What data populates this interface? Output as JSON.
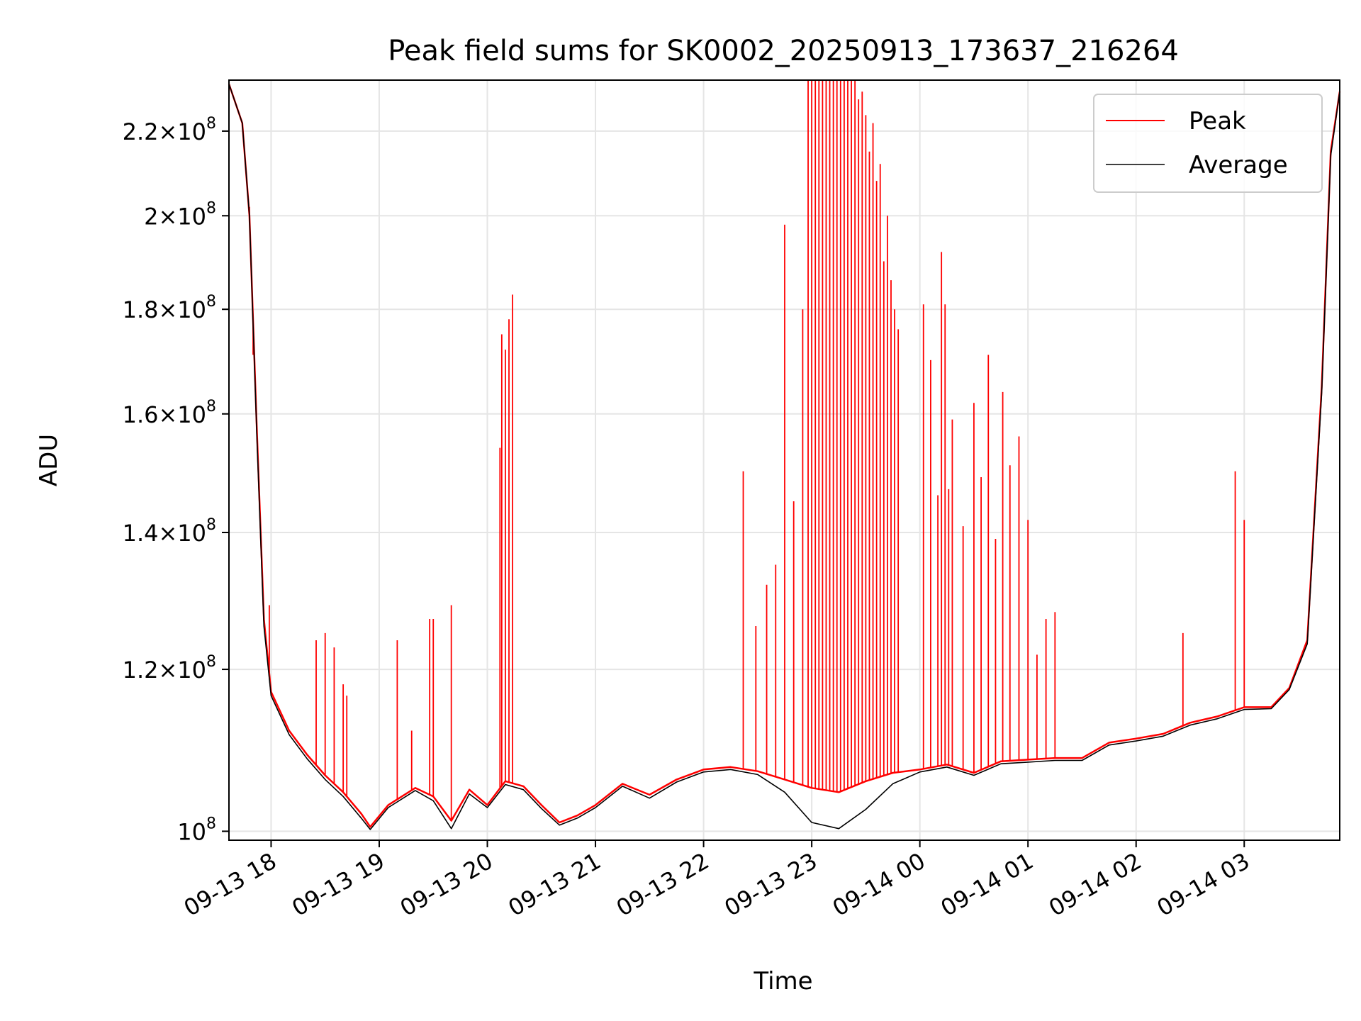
{
  "chart_data": {
    "type": "line",
    "title": "Peak field sums for SK0002_20250913_173637_216264",
    "xlabel": "Time",
    "ylabel": "ADU",
    "yscale": "log",
    "ylim": [
      99000000,
      233000000
    ],
    "xlim": [
      "2025-09-13 17:36:37",
      "2025-09-14 03:53:00"
    ],
    "x_ticks": [
      "09-13 18",
      "09-13 19",
      "09-13 20",
      "09-13 21",
      "09-13 22",
      "09-13 23",
      "09-14 00",
      "09-14 01",
      "09-14 02",
      "09-14 03"
    ],
    "y_ticks": [
      {
        "value": 100000000,
        "mantissa": "",
        "exponent": "8"
      },
      {
        "value": 120000000,
        "mantissa": "1.2",
        "exponent": "8"
      },
      {
        "value": 140000000,
        "mantissa": "1.4",
        "exponent": "8"
      },
      {
        "value": 160000000,
        "mantissa": "1.6",
        "exponent": "8"
      },
      {
        "value": 180000000,
        "mantissa": "1.8",
        "exponent": "8"
      },
      {
        "value": 200000000,
        "mantissa": "2",
        "exponent": "8"
      },
      {
        "value": 220000000,
        "mantissa": "2.2",
        "exponent": "8"
      }
    ],
    "grid": true,
    "legend_position": "top-right",
    "series": [
      {
        "name": "Peak",
        "color": "#ff0000",
        "points": [
          [
            "2025-09-13 17:36:37",
            232000000
          ],
          [
            "2025-09-13 17:44:00",
            222000000
          ],
          [
            "2025-09-13 17:48:00",
            200000000
          ],
          [
            "2025-09-13 17:52:00",
            158000000
          ],
          [
            "2025-09-13 17:56:00",
            127000000
          ],
          [
            "2025-09-13 18:00:00",
            117000000
          ],
          [
            "2025-09-13 18:10:00",
            112000000
          ],
          [
            "2025-09-13 18:20:00",
            109000000
          ],
          [
            "2025-09-13 18:30:00",
            106500000
          ],
          [
            "2025-09-13 18:40:00",
            104500000
          ],
          [
            "2025-09-13 18:50:00",
            102000000
          ],
          [
            "2025-09-13 18:55:00",
            100500000
          ],
          [
            "2025-09-13 19:05:00",
            103000000
          ],
          [
            "2025-09-13 19:20:00",
            105000000
          ],
          [
            "2025-09-13 19:30:00",
            104000000
          ],
          [
            "2025-09-13 19:40:00",
            101200000
          ],
          [
            "2025-09-13 19:50:00",
            104800000
          ],
          [
            "2025-09-13 20:00:00",
            103000000
          ],
          [
            "2025-09-13 20:10:00",
            105800000
          ],
          [
            "2025-09-13 20:20:00",
            105200000
          ],
          [
            "2025-09-13 20:30:00",
            103000000
          ],
          [
            "2025-09-13 20:40:00",
            101000000
          ],
          [
            "2025-09-13 20:50:00",
            101800000
          ],
          [
            "2025-09-13 21:00:00",
            103000000
          ],
          [
            "2025-09-13 21:15:00",
            105500000
          ],
          [
            "2025-09-13 21:30:00",
            104200000
          ],
          [
            "2025-09-13 21:45:00",
            106000000
          ],
          [
            "2025-09-13 22:00:00",
            107200000
          ],
          [
            "2025-09-13 22:15:00",
            107500000
          ],
          [
            "2025-09-13 22:30:00",
            107000000
          ],
          [
            "2025-09-13 22:45:00",
            106000000
          ],
          [
            "2025-09-13 23:00:00",
            105000000
          ],
          [
            "2025-09-13 23:15:00",
            104500000
          ],
          [
            "2025-09-13 23:30:00",
            105800000
          ],
          [
            "2025-09-13 23:45:00",
            106800000
          ],
          [
            "2025-09-14 00:00:00",
            107200000
          ],
          [
            "2025-09-14 00:15:00",
            107800000
          ],
          [
            "2025-09-14 00:30:00",
            106800000
          ],
          [
            "2025-09-14 00:45:00",
            108200000
          ],
          [
            "2025-09-14 01:00:00",
            108400000
          ],
          [
            "2025-09-14 01:15:00",
            108600000
          ],
          [
            "2025-09-14 01:30:00",
            108600000
          ],
          [
            "2025-09-14 01:45:00",
            110500000
          ],
          [
            "2025-09-14 02:00:00",
            111000000
          ],
          [
            "2025-09-14 02:15:00",
            111600000
          ],
          [
            "2025-09-14 02:30:00",
            113000000
          ],
          [
            "2025-09-14 02:45:00",
            113800000
          ],
          [
            "2025-09-14 03:00:00",
            115000000
          ],
          [
            "2025-09-14 03:15:00",
            115000000
          ],
          [
            "2025-09-14 03:25:00",
            117500000
          ],
          [
            "2025-09-14 03:35:00",
            124000000
          ],
          [
            "2025-09-14 03:43:00",
            165000000
          ],
          [
            "2025-09-14 03:48:00",
            215000000
          ],
          [
            "2025-09-14 03:53:00",
            230000000
          ]
        ],
        "spikes": [
          [
            "2025-09-13 17:48:00",
            202000000
          ],
          [
            "2025-09-13 17:50:00",
            171000000
          ],
          [
            "2025-09-13 17:59:00",
            129000000
          ],
          [
            "2025-09-13 18:25:00",
            124000000
          ],
          [
            "2025-09-13 18:30:00",
            125000000
          ],
          [
            "2025-09-13 18:35:00",
            123000000
          ],
          [
            "2025-09-13 18:40:00",
            118000000
          ],
          [
            "2025-09-13 18:42:00",
            116500000
          ],
          [
            "2025-09-13 19:10:00",
            124000000
          ],
          [
            "2025-09-13 19:18:00",
            112000000
          ],
          [
            "2025-09-13 19:28:00",
            127000000
          ],
          [
            "2025-09-13 19:30:00",
            127000000
          ],
          [
            "2025-09-13 19:40:00",
            129000000
          ],
          [
            "2025-09-13 20:07:00",
            154000000
          ],
          [
            "2025-09-13 20:08:00",
            175000000
          ],
          [
            "2025-09-13 20:10:00",
            172000000
          ],
          [
            "2025-09-13 20:12:00",
            178000000
          ],
          [
            "2025-09-13 20:14:00",
            183000000
          ],
          [
            "2025-09-13 22:22:00",
            150000000
          ],
          [
            "2025-09-13 22:29:00",
            126000000
          ],
          [
            "2025-09-13 22:35:00",
            132000000
          ],
          [
            "2025-09-13 22:40:00",
            135000000
          ],
          [
            "2025-09-13 22:45:00",
            198000000
          ],
          [
            "2025-09-13 22:50:00",
            145000000
          ],
          [
            "2025-09-13 22:55:00",
            180000000
          ],
          [
            "2025-09-13 22:58:00",
            233000000
          ],
          [
            "2025-09-13 23:00:00",
            233000000
          ],
          [
            "2025-09-13 23:02:00",
            233000000
          ],
          [
            "2025-09-13 23:04:00",
            233000000
          ],
          [
            "2025-09-13 23:06:00",
            233000000
          ],
          [
            "2025-09-13 23:08:00",
            233000000
          ],
          [
            "2025-09-13 23:10:00",
            233000000
          ],
          [
            "2025-09-13 23:12:00",
            233000000
          ],
          [
            "2025-09-13 23:14:00",
            233000000
          ],
          [
            "2025-09-13 23:16:00",
            233000000
          ],
          [
            "2025-09-13 23:18:00",
            233000000
          ],
          [
            "2025-09-13 23:20:00",
            233000000
          ],
          [
            "2025-09-13 23:22:00",
            233000000
          ],
          [
            "2025-09-13 23:24:00",
            233000000
          ],
          [
            "2025-09-13 23:26:00",
            228000000
          ],
          [
            "2025-09-13 23:28:00",
            230000000
          ],
          [
            "2025-09-13 23:30:00",
            224000000
          ],
          [
            "2025-09-13 23:32:00",
            215000000
          ],
          [
            "2025-09-13 23:34:00",
            222000000
          ],
          [
            "2025-09-13 23:36:00",
            208000000
          ],
          [
            "2025-09-13 23:38:00",
            212000000
          ],
          [
            "2025-09-13 23:40:00",
            190000000
          ],
          [
            "2025-09-13 23:42:00",
            200000000
          ],
          [
            "2025-09-13 23:44:00",
            186000000
          ],
          [
            "2025-09-13 23:46:00",
            180000000
          ],
          [
            "2025-09-13 23:48:00",
            176000000
          ],
          [
            "2025-09-14 00:02:00",
            181000000
          ],
          [
            "2025-09-14 00:06:00",
            170000000
          ],
          [
            "2025-09-14 00:10:00",
            146000000
          ],
          [
            "2025-09-14 00:12:00",
            192000000
          ],
          [
            "2025-09-14 00:14:00",
            181000000
          ],
          [
            "2025-09-14 00:16:00",
            147000000
          ],
          [
            "2025-09-14 00:18:00",
            159000000
          ],
          [
            "2025-09-14 00:24:00",
            141000000
          ],
          [
            "2025-09-14 00:30:00",
            162000000
          ],
          [
            "2025-09-14 00:34:00",
            149000000
          ],
          [
            "2025-09-14 00:38:00",
            171000000
          ],
          [
            "2025-09-14 00:42:00",
            139000000
          ],
          [
            "2025-09-14 00:46:00",
            164000000
          ],
          [
            "2025-09-14 00:50:00",
            151000000
          ],
          [
            "2025-09-14 00:55:00",
            156000000
          ],
          [
            "2025-09-14 01:00:00",
            142000000
          ],
          [
            "2025-09-14 01:05:00",
            122000000
          ],
          [
            "2025-09-14 01:10:00",
            127000000
          ],
          [
            "2025-09-14 01:15:00",
            128000000
          ],
          [
            "2025-09-14 02:26:00",
            125000000
          ],
          [
            "2025-09-14 02:55:00",
            150000000
          ],
          [
            "2025-09-14 03:00:00",
            142000000
          ]
        ]
      },
      {
        "name": "Average",
        "color": "#000000",
        "points": [
          [
            "2025-09-13 17:36:37",
            232000000
          ],
          [
            "2025-09-13 17:44:00",
            222000000
          ],
          [
            "2025-09-13 17:48:00",
            200000000
          ],
          [
            "2025-09-13 17:52:00",
            157000000
          ],
          [
            "2025-09-13 17:56:00",
            126000000
          ],
          [
            "2025-09-13 18:00:00",
            116500000
          ],
          [
            "2025-09-13 18:10:00",
            111500000
          ],
          [
            "2025-09-13 18:20:00",
            108500000
          ],
          [
            "2025-09-13 18:30:00",
            106000000
          ],
          [
            "2025-09-13 18:40:00",
            104000000
          ],
          [
            "2025-09-13 18:50:00",
            101500000
          ],
          [
            "2025-09-13 18:55:00",
            100200000
          ],
          [
            "2025-09-13 19:05:00",
            102700000
          ],
          [
            "2025-09-13 19:20:00",
            104700000
          ],
          [
            "2025-09-13 19:30:00",
            103500000
          ],
          [
            "2025-09-13 19:40:00",
            100300000
          ],
          [
            "2025-09-13 19:50:00",
            104300000
          ],
          [
            "2025-09-13 20:00:00",
            102700000
          ],
          [
            "2025-09-13 20:10:00",
            105400000
          ],
          [
            "2025-09-13 20:20:00",
            104800000
          ],
          [
            "2025-09-13 20:30:00",
            102600000
          ],
          [
            "2025-09-13 20:40:00",
            100700000
          ],
          [
            "2025-09-13 20:50:00",
            101500000
          ],
          [
            "2025-09-13 21:00:00",
            102700000
          ],
          [
            "2025-09-13 21:15:00",
            105200000
          ],
          [
            "2025-09-13 21:30:00",
            103800000
          ],
          [
            "2025-09-13 21:45:00",
            105700000
          ],
          [
            "2025-09-13 22:00:00",
            106900000
          ],
          [
            "2025-09-13 22:15:00",
            107200000
          ],
          [
            "2025-09-13 22:30:00",
            106600000
          ],
          [
            "2025-09-13 22:45:00",
            104500000
          ],
          [
            "2025-09-13 23:00:00",
            101000000
          ],
          [
            "2025-09-13 23:15:00",
            100300000
          ],
          [
            "2025-09-13 23:30:00",
            102500000
          ],
          [
            "2025-09-13 23:45:00",
            105500000
          ],
          [
            "2025-09-14 00:00:00",
            106900000
          ],
          [
            "2025-09-14 00:15:00",
            107500000
          ],
          [
            "2025-09-14 00:30:00",
            106500000
          ],
          [
            "2025-09-14 00:45:00",
            107900000
          ],
          [
            "2025-09-14 01:00:00",
            108100000
          ],
          [
            "2025-09-14 01:15:00",
            108300000
          ],
          [
            "2025-09-14 01:30:00",
            108300000
          ],
          [
            "2025-09-14 01:45:00",
            110200000
          ],
          [
            "2025-09-14 02:00:00",
            110700000
          ],
          [
            "2025-09-14 02:15:00",
            111300000
          ],
          [
            "2025-09-14 02:30:00",
            112700000
          ],
          [
            "2025-09-14 02:45:00",
            113500000
          ],
          [
            "2025-09-14 03:00:00",
            114700000
          ],
          [
            "2025-09-14 03:15:00",
            114800000
          ],
          [
            "2025-09-14 03:25:00",
            117300000
          ],
          [
            "2025-09-14 03:35:00",
            123500000
          ],
          [
            "2025-09-14 03:43:00",
            164000000
          ],
          [
            "2025-09-14 03:48:00",
            214000000
          ],
          [
            "2025-09-14 03:53:00",
            230000000
          ]
        ]
      }
    ]
  }
}
